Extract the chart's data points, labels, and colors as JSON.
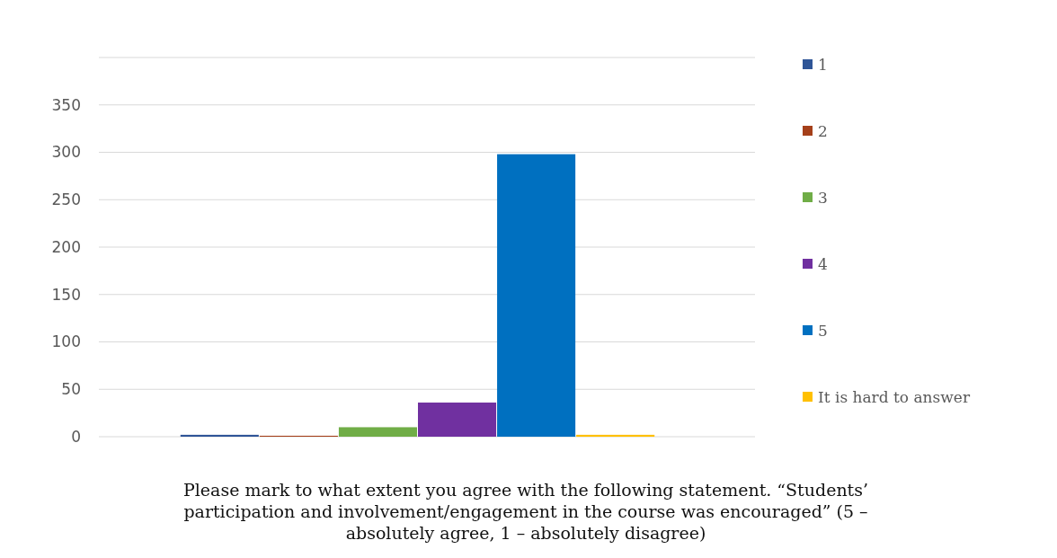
{
  "chart_data": {
    "type": "bar",
    "title": "Please mark to what extent you agree with the following statement. “Students’ participation and involvement/engagement in the course was encouraged” (5 – absolutely agree, 1 – absolutely disagree)",
    "categories": [
      null
    ],
    "series": [
      {
        "name": "1",
        "color": "#2f5597",
        "values": [
          2
        ]
      },
      {
        "name": "2",
        "color": "#a5401a",
        "values": [
          1
        ]
      },
      {
        "name": "3",
        "color": "#70ad47",
        "values": [
          10
        ]
      },
      {
        "name": "4",
        "color": "#7030a0",
        "values": [
          36
        ]
      },
      {
        "name": "5",
        "color": "#0070c0",
        "values": [
          298
        ]
      },
      {
        "name": "It is hard to answer",
        "color": "#ffc000",
        "values": [
          2
        ]
      }
    ],
    "ylim": [
      0,
      400
    ],
    "yticks": [
      0,
      50,
      100,
      150,
      200,
      250,
      300,
      350,
      {
        "value": 400,
        "label": null
      }
    ],
    "grid": true,
    "legend": "right"
  }
}
